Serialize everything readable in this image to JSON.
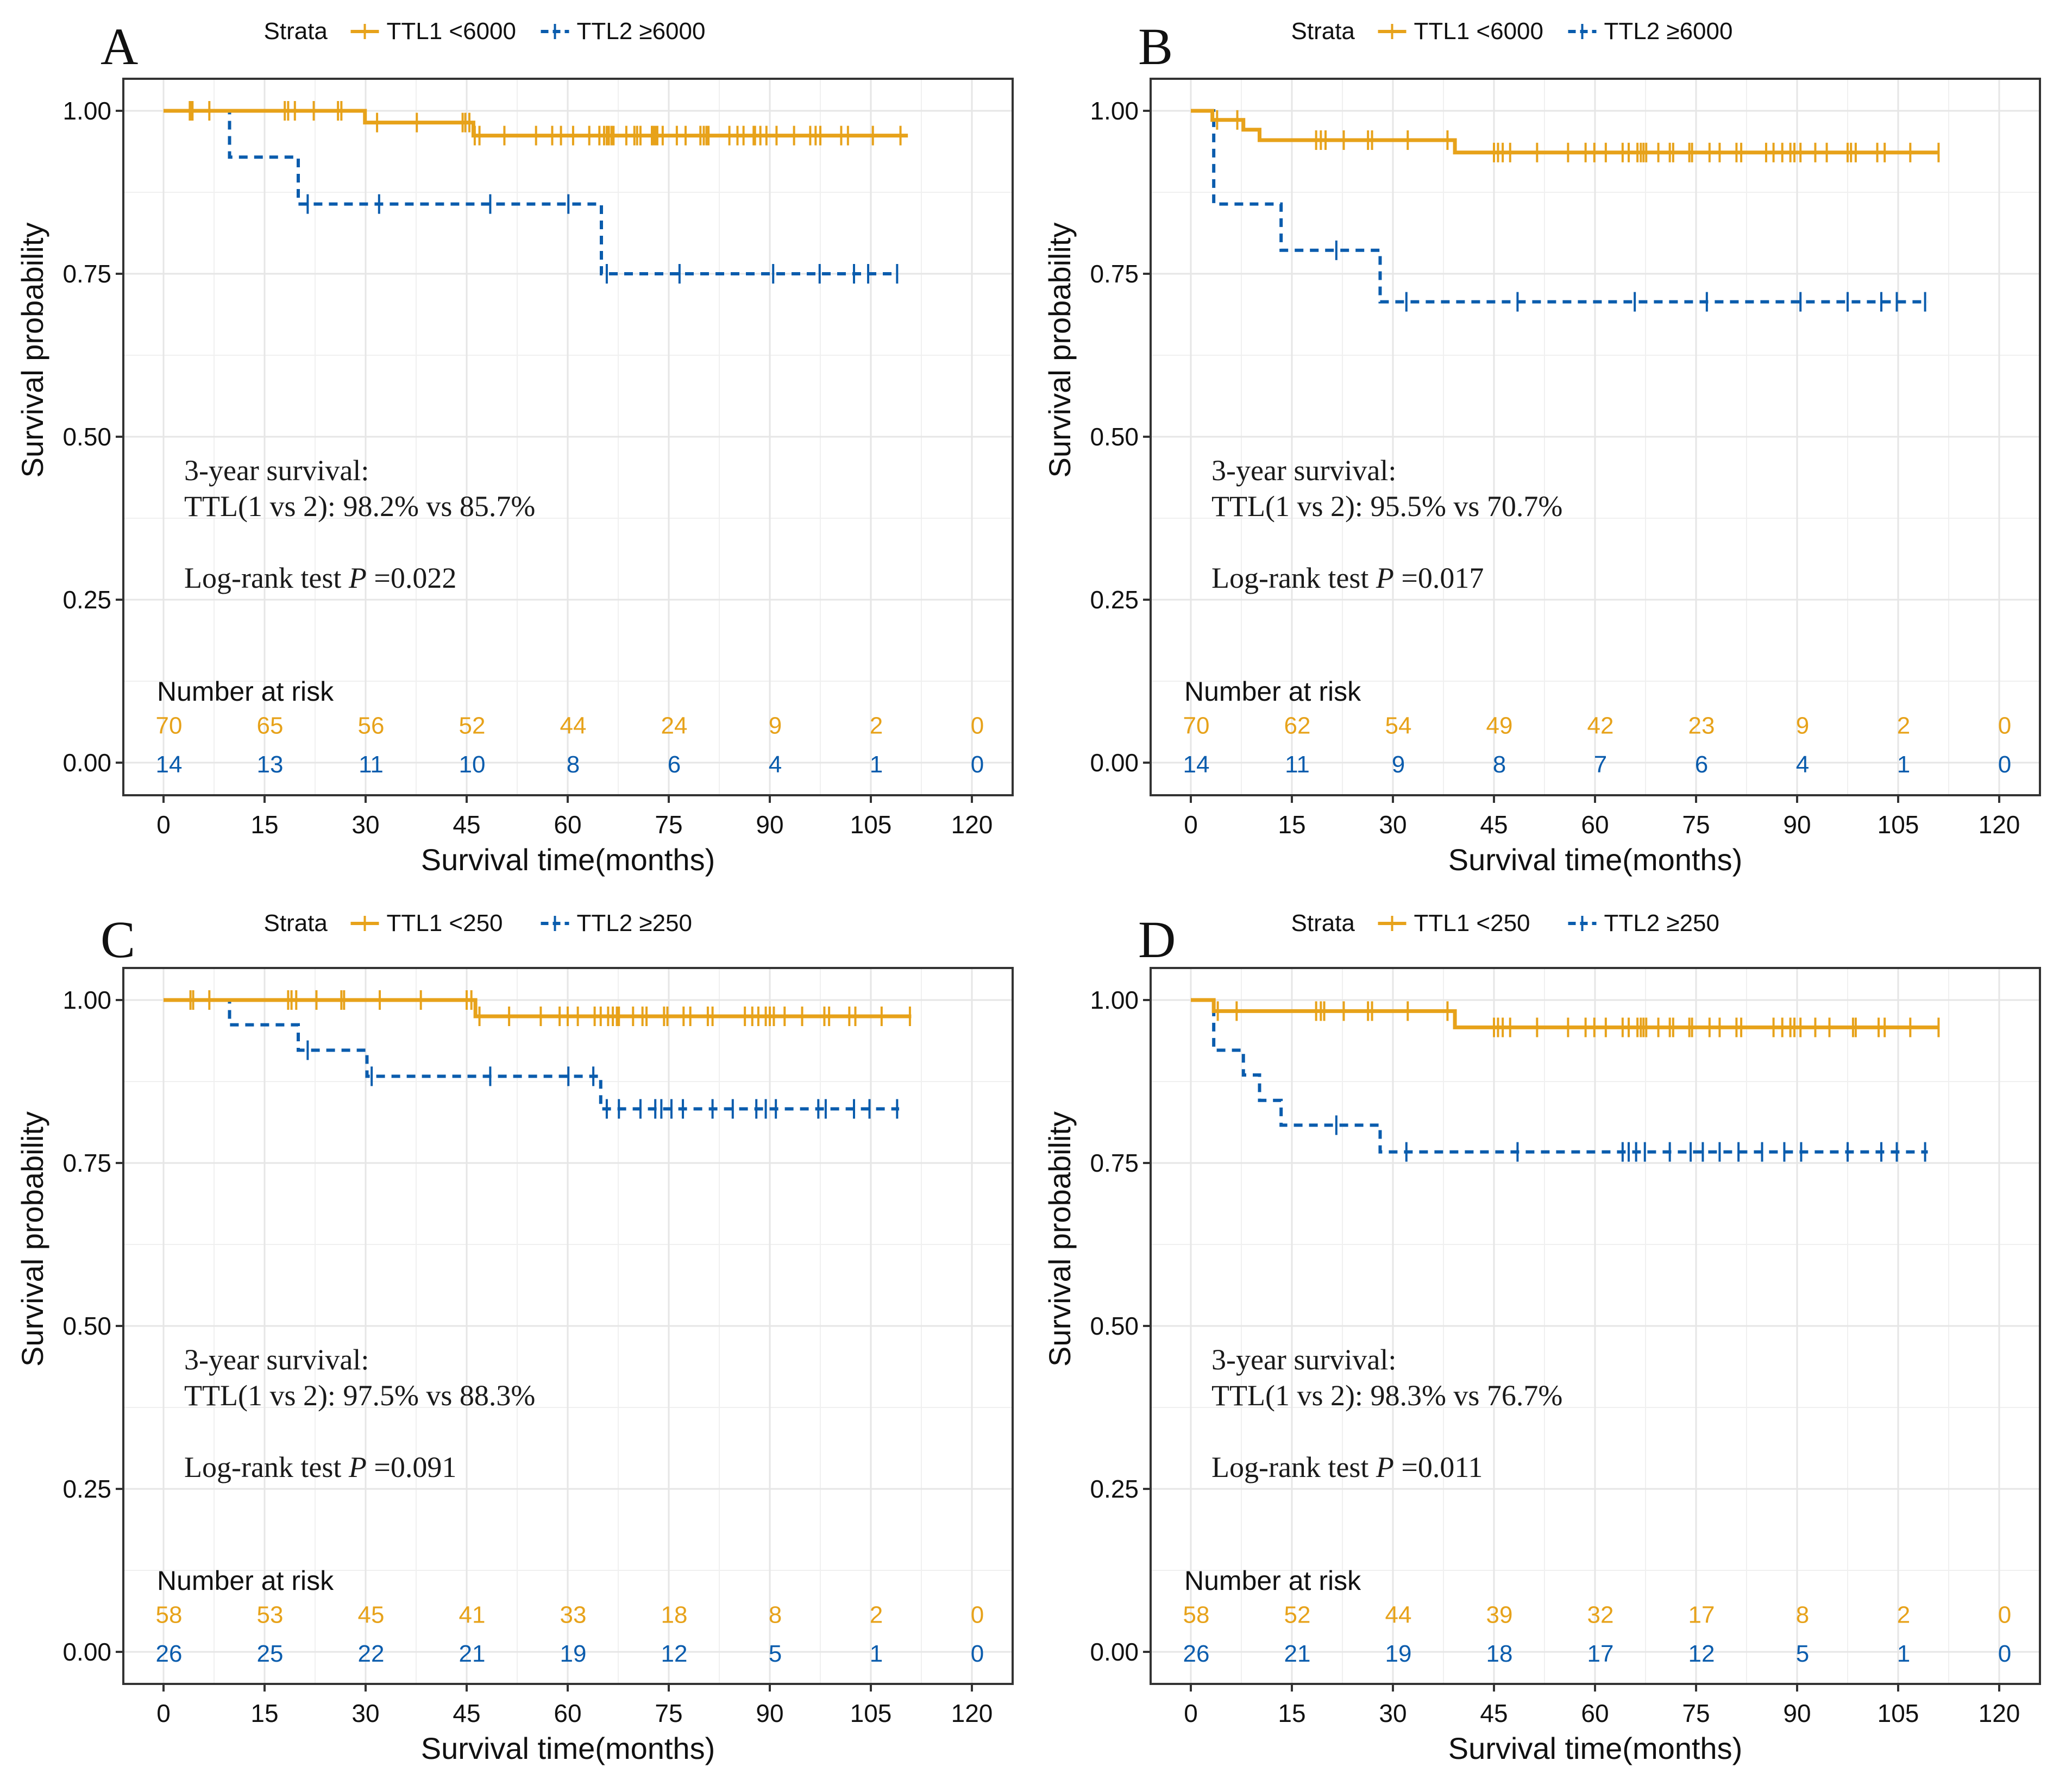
{
  "figure": {
    "panel_letters": [
      "A",
      "B",
      "C",
      "D"
    ]
  },
  "colors": {
    "group1": "#E7A21A",
    "group2": "#0A5CAD",
    "text": "#111111",
    "grid": "#E6E6E6"
  },
  "chart_data": [
    {
      "type": "line",
      "subtype": "kaplan-meier",
      "panel": "A",
      "legend_title": "Strata",
      "legend_position": "top",
      "xlabel": "Survival time(months)",
      "ylabel": "Survival probability",
      "xlim": [
        0,
        120
      ],
      "ylim": [
        0,
        1
      ],
      "x_ticks": [
        "0",
        "15",
        "30",
        "45",
        "60",
        "75",
        "90",
        "105",
        "120"
      ],
      "y_ticks": [
        "0.00",
        "0.25",
        "0.50",
        "0.75",
        "1.00"
      ],
      "grid": true,
      "annotations": {
        "line1": "3-year survival:",
        "line2": "TTL(1 vs 2): 98.2% vs 85.7%",
        "pval_prefix": "Log-rank test ",
        "pval_symbol": "P",
        "pval_value": " =0.022"
      },
      "risk_table": {
        "title": "Number at risk",
        "times": [
          0,
          15,
          30,
          45,
          60,
          75,
          90,
          105,
          120
        ],
        "group1": [
          "70",
          "65",
          "56",
          "52",
          "44",
          "24",
          "9",
          "2",
          "0"
        ],
        "group2": [
          "14",
          "13",
          "11",
          "10",
          "8",
          "6",
          "4",
          "1",
          "0"
        ]
      },
      "series": [
        {
          "name": "TTL1 <6000",
          "style": "solid",
          "steps": [
            [
              0,
              1.0
            ],
            [
              29.9,
              0.982
            ],
            [
              46.0,
              0.962
            ]
          ],
          "end": 110.5,
          "censored": [
            3.9,
            4.1,
            4.3,
            6.8,
            18.0,
            18.5,
            19.5,
            22.3,
            25.9,
            26.4,
            31.7,
            37.6,
            44.4,
            44.8,
            45.4,
            46.2,
            46.9,
            50.6,
            55.3,
            57.7,
            59.0,
            60.8,
            63.2,
            64.7,
            65.4,
            65.8,
            66.1,
            66.5,
            66.8,
            68.7,
            69.9,
            70.3,
            70.8,
            72.5,
            72.7,
            73.0,
            73.3,
            74.1,
            76.2,
            77.5,
            79.7,
            80.2,
            80.6,
            80.9,
            84.0,
            85.2,
            86.1,
            87.6,
            87.8,
            88.6,
            89.5,
            91.0,
            93.6,
            96.0,
            96.8,
            97.5,
            100.6,
            101.6,
            105.3,
            109.4
          ]
        },
        {
          "name": "TTL2 ≥6000",
          "style": "dashed",
          "steps": [
            [
              0,
              1.0
            ],
            [
              9.8,
              0.929
            ],
            [
              20.0,
              0.857
            ],
            [
              65.0,
              0.75
            ]
          ],
          "end": 109.0,
          "censored": [
            21.4,
            32.0,
            48.5,
            60.1,
            65.8,
            76.6,
            90.5,
            97.4,
            102.5,
            104.6,
            108.9
          ]
        }
      ]
    },
    {
      "type": "line",
      "subtype": "kaplan-meier",
      "panel": "B",
      "legend_title": "Strata",
      "legend_position": "top",
      "xlabel": "Survival time(months)",
      "ylabel": "Survival probability",
      "xlim": [
        0,
        120
      ],
      "ylim": [
        0,
        1
      ],
      "x_ticks": [
        "0",
        "15",
        "30",
        "45",
        "60",
        "75",
        "90",
        "105",
        "120"
      ],
      "y_ticks": [
        "0.00",
        "0.25",
        "0.50",
        "0.75",
        "1.00"
      ],
      "grid": true,
      "annotations": {
        "line1": "3-year survival:",
        "line2": "TTL(1 vs 2): 95.5% vs 70.7%",
        "pval_prefix": "Log-rank test ",
        "pval_symbol": "P",
        "pval_value": " =0.017"
      },
      "risk_table": {
        "title": "Number at risk",
        "times": [
          0,
          15,
          30,
          45,
          60,
          75,
          90,
          105,
          120
        ],
        "group1": [
          "70",
          "62",
          "54",
          "49",
          "42",
          "23",
          "9",
          "2",
          "0"
        ],
        "group2": [
          "14",
          "11",
          "9",
          "8",
          "7",
          "6",
          "4",
          "1",
          "0"
        ]
      },
      "series": [
        {
          "name": "TTL1 <6000",
          "style": "solid",
          "steps": [
            [
              0,
              1.0
            ],
            [
              3.2,
              0.986
            ],
            [
              7.8,
              0.971
            ],
            [
              10.2,
              0.955
            ],
            [
              39.2,
              0.936
            ]
          ],
          "end": 111.0,
          "censored": [
            3.9,
            6.9,
            18.6,
            19.3,
            20.0,
            22.7,
            26.3,
            26.9,
            32.2,
            38.1,
            45.0,
            45.6,
            46.3,
            47.4,
            51.4,
            56.0,
            58.6,
            59.9,
            61.6,
            64.1,
            65.0,
            66.3,
            66.8,
            67.2,
            67.6,
            69.4,
            71.1,
            71.6,
            74.0,
            74.4,
            77.0,
            78.5,
            81.0,
            81.7,
            85.4,
            86.5,
            87.8,
            89.0,
            89.6,
            90.5,
            92.7,
            94.4,
            97.5,
            98.0,
            98.7,
            101.9,
            103.0,
            106.8,
            111.0
          ]
        },
        {
          "name": "TTL2 ≥6000",
          "style": "dashed",
          "steps": [
            [
              0,
              1.0
            ],
            [
              3.4,
              0.857
            ],
            [
              13.4,
              0.786
            ],
            [
              28.1,
              0.707
            ]
          ],
          "end": 109.4,
          "censored": [
            21.6,
            32.0,
            48.5,
            65.9,
            76.6,
            90.5,
            97.5,
            102.5,
            104.8,
            109.0
          ]
        }
      ]
    },
    {
      "type": "line",
      "subtype": "kaplan-meier",
      "panel": "C",
      "legend_title": "Strata",
      "legend_position": "top",
      "xlabel": "Survival time(months)",
      "ylabel": "Survival probability",
      "xlim": [
        0,
        120
      ],
      "ylim": [
        0,
        1
      ],
      "x_ticks": [
        "0",
        "15",
        "30",
        "45",
        "60",
        "75",
        "90",
        "105",
        "120"
      ],
      "y_ticks": [
        "0.00",
        "0.25",
        "0.50",
        "0.75",
        "1.00"
      ],
      "grid": true,
      "annotations": {
        "line1": "3-year survival:",
        "line2": "TTL(1 vs 2): 97.5% vs 88.3%",
        "pval_prefix": "Log-rank test ",
        "pval_symbol": "P",
        "pval_value": " =0.091"
      },
      "risk_table": {
        "title": "Number at risk",
        "times": [
          0,
          15,
          30,
          45,
          60,
          75,
          90,
          105,
          120
        ],
        "group1": [
          "58",
          "53",
          "45",
          "41",
          "33",
          "18",
          "8",
          "2",
          "0"
        ],
        "group2": [
          "26",
          "25",
          "22",
          "21",
          "19",
          "12",
          "5",
          "1",
          "0"
        ]
      },
      "series": [
        {
          "name": "TTL1 <250",
          "style": "solid",
          "steps": [
            [
              0,
              1.0
            ],
            [
              46.3,
              0.975
            ]
          ],
          "end": 111.0,
          "censored": [
            4.0,
            4.4,
            6.8,
            18.5,
            19.0,
            19.7,
            22.7,
            26.4,
            26.8,
            32.1,
            38.2,
            45.0,
            45.7,
            46.9,
            51.3,
            56.0,
            58.8,
            60.0,
            61.5,
            64.0,
            64.9,
            66.0,
            66.7,
            67.3,
            67.6,
            69.7,
            71.1,
            71.7,
            74.3,
            74.8,
            77.2,
            78.2,
            80.8,
            81.5,
            86.3,
            87.4,
            88.3,
            89.4,
            90.0,
            90.6,
            92.2,
            94.8,
            98.1,
            98.8,
            101.8,
            102.7,
            106.6,
            110.8
          ]
        },
        {
          "name": "TTL2 ≥250",
          "style": "dashed",
          "steps": [
            [
              0,
              1.0
            ],
            [
              9.8,
              0.962
            ],
            [
              20.0,
              0.923
            ],
            [
              30.2,
              0.883
            ],
            [
              64.9,
              0.833
            ]
          ],
          "end": 109.2,
          "censored": [
            21.4,
            30.9,
            48.5,
            60.1,
            63.8,
            65.8,
            67.6,
            70.8,
            73.0,
            73.9,
            75.4,
            77.1,
            81.5,
            84.5,
            88.0,
            89.4,
            90.9,
            97.2,
            98.3,
            102.5,
            104.8,
            108.9
          ]
        }
      ]
    },
    {
      "type": "line",
      "subtype": "kaplan-meier",
      "panel": "D",
      "legend_title": "Strata",
      "legend_position": "top",
      "xlabel": "Survival time(months)",
      "ylabel": "Survival probability",
      "xlim": [
        0,
        120
      ],
      "ylim": [
        0,
        1
      ],
      "x_ticks": [
        "0",
        "15",
        "30",
        "45",
        "60",
        "75",
        "90",
        "105",
        "120"
      ],
      "y_ticks": [
        "0.00",
        "0.25",
        "0.50",
        "0.75",
        "1.00"
      ],
      "grid": true,
      "annotations": {
        "line1": "3-year survival:",
        "line2": "TTL(1 vs 2): 98.3% vs 76.7%",
        "pval_prefix": "Log-rank test ",
        "pval_symbol": "P",
        "pval_value": " =0.011"
      },
      "risk_table": {
        "title": "Number at risk",
        "times": [
          0,
          15,
          30,
          45,
          60,
          75,
          90,
          105,
          120
        ],
        "group1": [
          "58",
          "52",
          "44",
          "39",
          "32",
          "17",
          "8",
          "2",
          "0"
        ],
        "group2": [
          "26",
          "21",
          "19",
          "18",
          "17",
          "12",
          "5",
          "1",
          "0"
        ]
      },
      "series": [
        {
          "name": "TTL1 <250",
          "style": "solid",
          "steps": [
            [
              0,
              1.0
            ],
            [
              3.4,
              0.983
            ],
            [
              39.2,
              0.958
            ]
          ],
          "end": 111.0,
          "censored": [
            4.0,
            6.8,
            18.6,
            19.3,
            19.8,
            22.7,
            26.3,
            26.9,
            32.2,
            38.1,
            45.0,
            45.6,
            46.3,
            47.4,
            51.4,
            56.0,
            58.6,
            59.9,
            61.6,
            64.1,
            65.0,
            66.3,
            66.8,
            67.2,
            67.6,
            69.4,
            71.1,
            71.6,
            74.0,
            74.4,
            77.0,
            78.5,
            81.0,
            81.7,
            86.5,
            87.8,
            89.0,
            89.6,
            90.5,
            92.7,
            94.8,
            98.3,
            98.7,
            102.1,
            103.0,
            106.8,
            111.0
          ]
        },
        {
          "name": "TTL2 ≥250",
          "style": "dashed",
          "steps": [
            [
              0,
              1.0
            ],
            [
              3.4,
              0.923
            ],
            [
              7.8,
              0.885
            ],
            [
              10.2,
              0.846
            ],
            [
              13.4,
              0.808
            ],
            [
              28.1,
              0.767
            ]
          ],
          "end": 109.4,
          "censored": [
            21.6,
            32.0,
            48.5,
            64.1,
            65.0,
            66.1,
            67.4,
            71.1,
            74.2,
            76.0,
            78.5,
            81.3,
            84.8,
            88.1,
            90.6,
            97.5,
            102.5,
            104.8,
            109.0
          ]
        }
      ]
    }
  ]
}
